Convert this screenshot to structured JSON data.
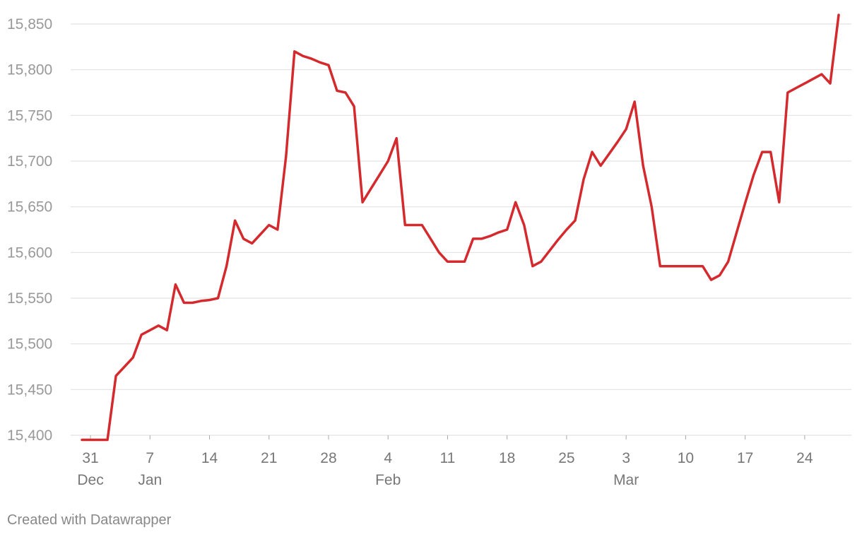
{
  "footer": {
    "credit": "Created with Datawrapper"
  },
  "chart_data": {
    "type": "line",
    "title": "",
    "xlabel": "",
    "ylabel": "",
    "ylim": [
      15400,
      15850
    ],
    "y_ticks": [
      "15,400",
      "15,450",
      "15,500",
      "15,550",
      "15,600",
      "15,650",
      "15,700",
      "15,750",
      "15,800",
      "15,850"
    ],
    "x_range": [
      "2023-12-30",
      "2024-03-28"
    ],
    "x_ticks": [
      {
        "date": "2023-12-31",
        "label": "31",
        "month": "Dec"
      },
      {
        "date": "2024-01-07",
        "label": "7",
        "month": "Jan"
      },
      {
        "date": "2024-01-14",
        "label": "14",
        "month": ""
      },
      {
        "date": "2024-01-21",
        "label": "21",
        "month": ""
      },
      {
        "date": "2024-01-28",
        "label": "28",
        "month": ""
      },
      {
        "date": "2024-02-04",
        "label": "4",
        "month": "Feb"
      },
      {
        "date": "2024-02-11",
        "label": "11",
        "month": ""
      },
      {
        "date": "2024-02-18",
        "label": "18",
        "month": ""
      },
      {
        "date": "2024-02-25",
        "label": "25",
        "month": ""
      },
      {
        "date": "2024-03-03",
        "label": "3",
        "month": "Mar"
      },
      {
        "date": "2024-03-10",
        "label": "10",
        "month": ""
      },
      {
        "date": "2024-03-17",
        "label": "17",
        "month": ""
      },
      {
        "date": "2024-03-24",
        "label": "24",
        "month": ""
      }
    ],
    "grid": true,
    "legend": "none",
    "color": "#d42a2e",
    "series": [
      {
        "x": [
          "2023-12-30",
          "2023-12-31",
          "2024-01-01",
          "2024-01-02",
          "2024-01-03",
          "2024-01-04",
          "2024-01-05",
          "2024-01-06",
          "2024-01-07",
          "2024-01-08",
          "2024-01-09",
          "2024-01-10",
          "2024-01-11",
          "2024-01-12",
          "2024-01-13",
          "2024-01-14",
          "2024-01-15",
          "2024-01-16",
          "2024-01-17",
          "2024-01-18",
          "2024-01-19",
          "2024-01-20",
          "2024-01-21",
          "2024-01-22",
          "2024-01-23",
          "2024-01-24",
          "2024-01-25",
          "2024-01-26",
          "2024-01-27",
          "2024-01-28",
          "2024-01-29",
          "2024-01-30",
          "2024-01-31",
          "2024-02-01",
          "2024-02-02",
          "2024-02-03",
          "2024-02-04",
          "2024-02-05",
          "2024-02-06",
          "2024-02-07",
          "2024-02-08",
          "2024-02-09",
          "2024-02-10",
          "2024-02-11",
          "2024-02-12",
          "2024-02-13",
          "2024-02-14",
          "2024-02-15",
          "2024-02-16",
          "2024-02-17",
          "2024-02-18",
          "2024-02-19",
          "2024-02-20",
          "2024-02-21",
          "2024-02-22",
          "2024-02-23",
          "2024-02-24",
          "2024-02-25",
          "2024-02-26",
          "2024-02-27",
          "2024-02-28",
          "2024-02-29",
          "2024-03-01",
          "2024-03-02",
          "2024-03-03",
          "2024-03-04",
          "2024-03-05",
          "2024-03-06",
          "2024-03-07",
          "2024-03-08",
          "2024-03-09",
          "2024-03-10",
          "2024-03-11",
          "2024-03-12",
          "2024-03-13",
          "2024-03-14",
          "2024-03-15",
          "2024-03-16",
          "2024-03-17",
          "2024-03-18",
          "2024-03-19",
          "2024-03-20",
          "2024-03-21",
          "2024-03-22",
          "2024-03-23",
          "2024-03-24",
          "2024-03-25",
          "2024-03-26",
          "2024-03-27",
          "2024-03-28"
        ],
        "values": [
          15395,
          15395,
          15395,
          15395,
          15465,
          15475,
          15485,
          15510,
          15515,
          15520,
          15515,
          15565,
          15545,
          15545,
          15547,
          15548,
          15550,
          15585,
          15635,
          15615,
          15610,
          15620,
          15630,
          15625,
          15705,
          15820,
          15815,
          15812,
          15808,
          15805,
          15777,
          15775,
          15760,
          15655,
          15670,
          15685,
          15700,
          15725,
          15630,
          15630,
          15630,
          15615,
          15600,
          15590,
          15590,
          15590,
          15615,
          15615,
          15618,
          15622,
          15625,
          15655,
          15630,
          15585,
          15590,
          15602,
          15614,
          15625,
          15635,
          15680,
          15710,
          15695,
          15708,
          15721,
          15735,
          15765,
          15695,
          15650,
          15585,
          15585,
          15585,
          15585,
          15585,
          15585,
          15570,
          15575,
          15590,
          15622,
          15654,
          15685,
          15710,
          15710,
          15655,
          15775,
          15780,
          15785,
          15790,
          15795,
          15785,
          15860
        ]
      }
    ]
  }
}
